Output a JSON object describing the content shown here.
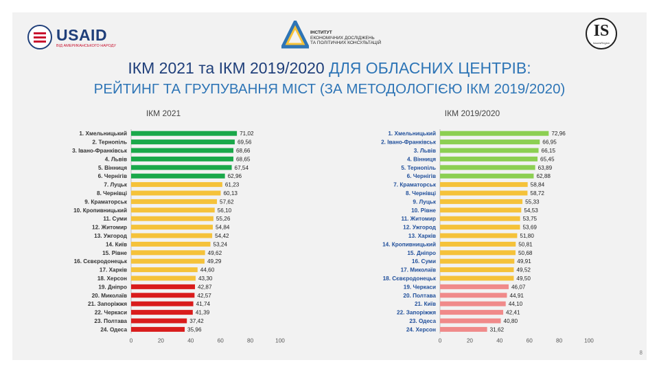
{
  "header": {
    "usaid_logo_text": "USAID",
    "usaid_logo_sub": "ВІД АМЕРИКАНСЬКОГО НАРОДУ",
    "institute_line1": "ІНСТИТУТ",
    "institute_line2": "ЕКОНОМІЧНИХ ДОСЛІДЖЕНЬ",
    "institute_line3": "ТА ПОЛІТИЧНИХ КОНСУЛЬТАЦІЙ",
    "is_logo_mark": "IS",
    "is_logo_sub": "IssuesRegion"
  },
  "title_part1": "ІКМ 2021 та ІКМ 2019/2020",
  "title_part2": "ДЛЯ ОБЛАСНИХ ЦЕНТРІВ:",
  "subtitle": "РЕЙТИНГ ТА ГРУПУВАННЯ МІСТ (ЗА МЕТОДОЛОГІЄЮ ІКМ 2019/2020)",
  "slide_number": "8",
  "colors": {
    "title": "#1f3f7a",
    "accent": "#2e75b6",
    "left_label": "#333333",
    "right_label": "#1f4e9a",
    "green_2021": "#1aa84a",
    "yellow": "#f5c23a",
    "red_2021": "#d91c1c",
    "green_2020": "#8ccf52",
    "red_2020": "#f08a8a"
  },
  "chart_data": [
    {
      "type": "bar",
      "orientation": "horizontal",
      "title": "ІКМ 2021",
      "categories": [
        "1. Хмельницький",
        "2. Тернопіль",
        "3. Івано-Франківськ",
        "4. Львів",
        "5. Вінниця",
        "6. Чернігів",
        "7. Луцьк",
        "8. Чернівці",
        "9. Краматорськ",
        "10. Кропивницький",
        "11. Суми",
        "12. Житомир",
        "13. Ужгород",
        "14. Київ",
        "15. Рівне",
        "16. Сєвєродонецьк",
        "17. Харків",
        "18. Херсон",
        "19. Дніпро",
        "20. Миколаїв",
        "21. Запоріжжя",
        "22. Черкаси",
        "23. Полтава",
        "24. Одеса"
      ],
      "values": [
        71.02,
        69.56,
        68.66,
        68.65,
        67.54,
        62.96,
        61.23,
        60.13,
        57.62,
        56.1,
        55.26,
        54.84,
        54.42,
        53.24,
        49.62,
        49.29,
        44.6,
        43.3,
        42.87,
        42.57,
        41.74,
        41.39,
        37.42,
        35.96
      ],
      "value_labels": [
        "71,02",
        "69,56",
        "68,66",
        "68,65",
        "67,54",
        "62,96",
        "61,23",
        "60,13",
        "57,62",
        "56,10",
        "55,26",
        "54,84",
        "54,42",
        "53,24",
        "49,62",
        "49,29",
        "44,60",
        "43,30",
        "42,87",
        "42,57",
        "41,74",
        "41,39",
        "37,42",
        "35,96"
      ],
      "groups": [
        "green",
        "green",
        "green",
        "green",
        "green",
        "green",
        "yellow",
        "yellow",
        "yellow",
        "yellow",
        "yellow",
        "yellow",
        "yellow",
        "yellow",
        "yellow",
        "yellow",
        "yellow",
        "yellow",
        "red",
        "red",
        "red",
        "red",
        "red",
        "red"
      ],
      "xlim": [
        0,
        100
      ],
      "xticks": [
        "0",
        "20",
        "40",
        "60",
        "80",
        "100"
      ],
      "grid": false
    },
    {
      "type": "bar",
      "orientation": "horizontal",
      "title": "ІКМ 2019/2020",
      "categories": [
        "1. Хмельницький",
        "2. Івано-Франківськ",
        "3. Львів",
        "4. Вінниця",
        "5. Тернопіль",
        "6. Чернігів",
        "7. Краматорськ",
        "8. Чернівці",
        "9. Луцьк",
        "10. Рівне",
        "11. Житомир",
        "12. Ужгород",
        "13. Харків",
        "14. Кропивницький",
        "15. Дніпро",
        "16. Суми",
        "17. Миколаїв",
        "18. Сєвєродонецьк",
        "19. Черкаси",
        "20. Полтава",
        "21. Київ",
        "22. Запоріжжя",
        "23. Одеса",
        "24. Херсон"
      ],
      "values": [
        72.96,
        66.95,
        66.15,
        65.45,
        63.89,
        62.88,
        58.84,
        58.72,
        55.33,
        54.53,
        53.75,
        53.69,
        51.8,
        50.81,
        50.68,
        49.91,
        49.52,
        49.5,
        46.07,
        44.91,
        44.1,
        42.41,
        40.8,
        31.62
      ],
      "value_labels": [
        "72,96",
        "66,95",
        "66,15",
        "65,45",
        "63,89",
        "62,88",
        "58,84",
        "58,72",
        "55,33",
        "54,53",
        "53,75",
        "53,69",
        "51,80",
        "50,81",
        "50,68",
        "49,91",
        "49,52",
        "49,50",
        "46,07",
        "44,91",
        "44,10",
        "42,41",
        "40,80",
        "31,62"
      ],
      "groups": [
        "green",
        "green",
        "green",
        "green",
        "green",
        "green",
        "yellow",
        "yellow",
        "yellow",
        "yellow",
        "yellow",
        "yellow",
        "yellow",
        "yellow",
        "yellow",
        "yellow",
        "yellow",
        "yellow",
        "red",
        "red",
        "red",
        "red",
        "red",
        "red"
      ],
      "xlim": [
        0,
        100
      ],
      "xticks": [
        "0",
        "20",
        "40",
        "60",
        "80",
        "100"
      ],
      "grid": false
    }
  ]
}
